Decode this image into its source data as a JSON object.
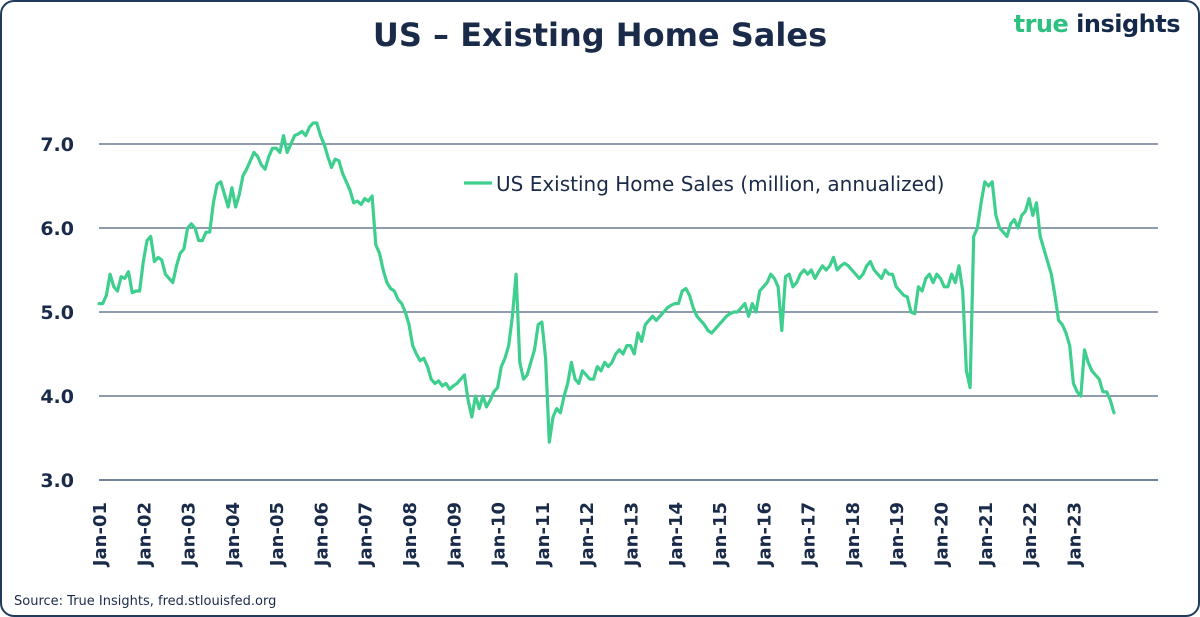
{
  "title": "US – Existing Home Sales",
  "brand": {
    "word1": "true",
    "word2": "insights",
    "color1": "#2ec081",
    "color2": "#14294a"
  },
  "source": "Source: True Insights, fred.stlouisfed.org",
  "chart_data": {
    "type": "line",
    "title": "US – Existing Home Sales",
    "xlabel": "",
    "ylabel": "",
    "ylim": [
      3.0,
      7.5
    ],
    "yticks": [
      3.0,
      4.0,
      5.0,
      6.0,
      7.0
    ],
    "ytick_labels": [
      "3.0",
      "4.0",
      "5.0",
      "6.0",
      "7.0"
    ],
    "grid": true,
    "legend_position": "top-right",
    "x_start": "2001-01",
    "x_frequency": "monthly",
    "x_tick_labels": [
      "Jan-01",
      "Jan-02",
      "Jan-03",
      "Jan-04",
      "Jan-05",
      "Jan-06",
      "Jan-07",
      "Jan-08",
      "Jan-09",
      "Jan-10",
      "Jan-11",
      "Jan-12",
      "Jan-13",
      "Jan-14",
      "Jan-15",
      "Jan-16",
      "Jan-17",
      "Jan-18",
      "Jan-19",
      "Jan-20",
      "Jan-21",
      "Jan-22",
      "Jan-23"
    ],
    "series": [
      {
        "name": "US Existing Home Sales (million, annualized)",
        "color": "#3ecf8e",
        "values": [
          5.1,
          5.1,
          5.2,
          5.45,
          5.3,
          5.25,
          5.42,
          5.4,
          5.48,
          5.23,
          5.25,
          5.25,
          5.6,
          5.85,
          5.9,
          5.6,
          5.65,
          5.62,
          5.45,
          5.4,
          5.35,
          5.55,
          5.7,
          5.75,
          6.0,
          6.05,
          6.0,
          5.85,
          5.85,
          5.95,
          5.95,
          6.3,
          6.52,
          6.55,
          6.4,
          6.25,
          6.48,
          6.25,
          6.4,
          6.62,
          6.7,
          6.8,
          6.9,
          6.85,
          6.75,
          6.7,
          6.85,
          6.95,
          6.95,
          6.9,
          7.1,
          6.9,
          7.0,
          7.1,
          7.12,
          7.15,
          7.1,
          7.2,
          7.25,
          7.25,
          7.1,
          7.0,
          6.85,
          6.72,
          6.82,
          6.8,
          6.65,
          6.55,
          6.45,
          6.3,
          6.32,
          6.28,
          6.35,
          6.32,
          6.38,
          5.8,
          5.7,
          5.5,
          5.35,
          5.28,
          5.25,
          5.15,
          5.1,
          5.0,
          4.85,
          4.6,
          4.5,
          4.42,
          4.45,
          4.35,
          4.2,
          4.15,
          4.18,
          4.12,
          4.15,
          4.08,
          4.12,
          4.15,
          4.2,
          4.25,
          3.95,
          3.75,
          4.0,
          3.85,
          4.0,
          3.87,
          3.95,
          4.05,
          4.1,
          4.35,
          4.45,
          4.6,
          4.95,
          5.45,
          4.4,
          4.2,
          4.25,
          4.4,
          4.55,
          4.85,
          4.88,
          4.45,
          3.45,
          3.75,
          3.85,
          3.8,
          4.0,
          4.15,
          4.4,
          4.2,
          4.15,
          4.3,
          4.25,
          4.2,
          4.2,
          4.35,
          4.3,
          4.4,
          4.35,
          4.4,
          4.5,
          4.55,
          4.5,
          4.6,
          4.6,
          4.5,
          4.75,
          4.65,
          4.85,
          4.9,
          4.95,
          4.9,
          4.95,
          5.0,
          5.05,
          5.08,
          5.1,
          5.1,
          5.25,
          5.28,
          5.2,
          5.05,
          4.95,
          4.9,
          4.85,
          4.78,
          4.75,
          4.8,
          4.85,
          4.9,
          4.95,
          4.98,
          5.0,
          5.0,
          5.05,
          5.1,
          4.95,
          5.1,
          5.0,
          5.25,
          5.3,
          5.35,
          5.45,
          5.4,
          5.3,
          4.78,
          5.42,
          5.45,
          5.3,
          5.35,
          5.45,
          5.5,
          5.45,
          5.5,
          5.4,
          5.48,
          5.55,
          5.5,
          5.55,
          5.65,
          5.5,
          5.55,
          5.58,
          5.55,
          5.5,
          5.45,
          5.4,
          5.45,
          5.55,
          5.6,
          5.5,
          5.45,
          5.4,
          5.5,
          5.45,
          5.45,
          5.3,
          5.25,
          5.2,
          5.18,
          5.0,
          4.98,
          5.3,
          5.25,
          5.4,
          5.45,
          5.35,
          5.45,
          5.4,
          5.3,
          5.3,
          5.45,
          5.35,
          5.55,
          5.25,
          4.3,
          4.1,
          5.9,
          6.0,
          6.3,
          6.55,
          6.5,
          6.55,
          6.15,
          6.0,
          5.95,
          5.9,
          6.05,
          6.1,
          6.0,
          6.15,
          6.2,
          6.35,
          6.15,
          6.3,
          5.9,
          5.75,
          5.6,
          5.45,
          5.2,
          4.9,
          4.85,
          4.75,
          4.6,
          4.15,
          4.05,
          4.0,
          4.55,
          4.4,
          4.3,
          4.25,
          4.2,
          4.05,
          4.05,
          3.95,
          3.8
        ]
      }
    ]
  }
}
